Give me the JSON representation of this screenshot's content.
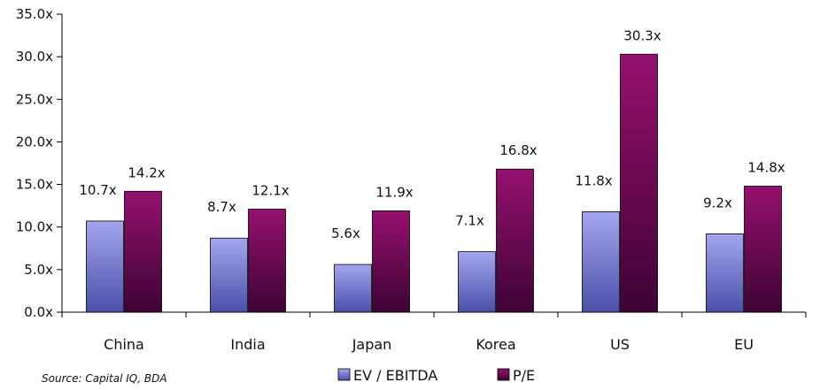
{
  "chart_data": {
    "type": "bar",
    "categories": [
      "China",
      "India",
      "Japan",
      "Korea",
      "US",
      "EU"
    ],
    "series": [
      {
        "name": "EV / EBITDA",
        "values": [
          10.7,
          8.7,
          5.6,
          7.1,
          11.8,
          9.2
        ],
        "labels": [
          "10.7x",
          "8.7x",
          "5.6x",
          "7.1x",
          "11.8x",
          "9.2x"
        ],
        "color": "#8080d8"
      },
      {
        "name": "P/E",
        "values": [
          14.2,
          12.1,
          11.9,
          16.8,
          30.3,
          14.8
        ],
        "labels": [
          "14.2x",
          "12.1x",
          "11.9x",
          "16.8x",
          "30.3x",
          "14.8x"
        ],
        "color": "#8b0a6e"
      }
    ],
    "ylim": [
      0,
      35
    ],
    "yticks": [
      0,
      5,
      10,
      15,
      20,
      25,
      30,
      35
    ],
    "ytick_labels": [
      "0.0x",
      "5.0x",
      "10.0x",
      "15.0x",
      "20.0x",
      "25.0x",
      "30.0x",
      "35.0x"
    ],
    "legend_position": "bottom-center",
    "grid": false,
    "source_note": "Source: Capital IQ, BDA"
  }
}
